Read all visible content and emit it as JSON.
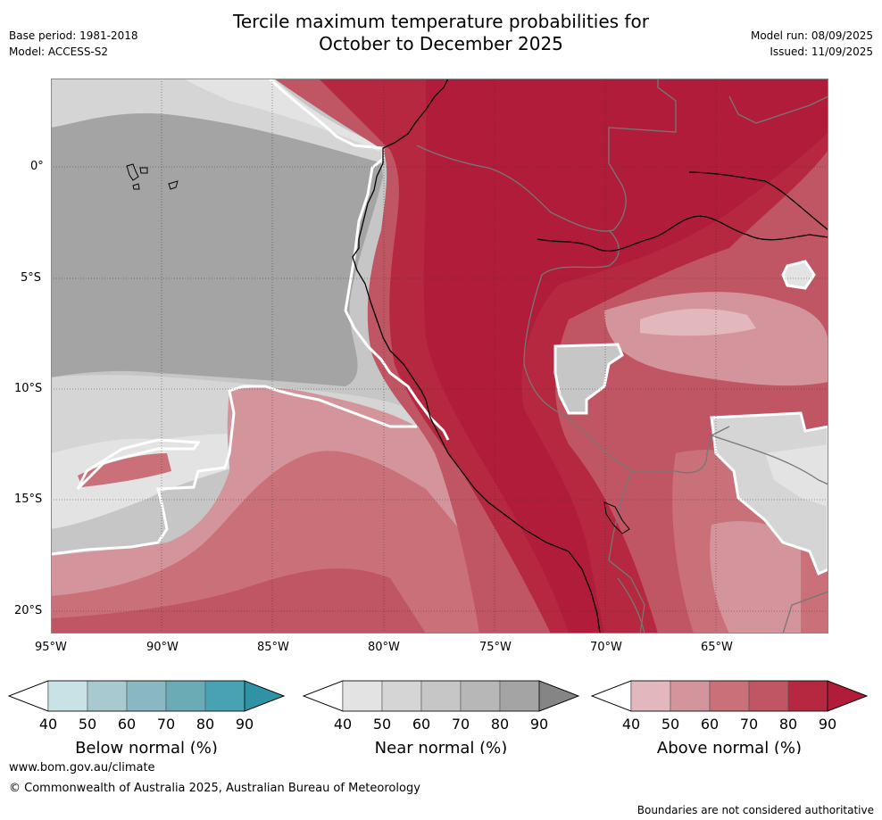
{
  "header": {
    "title_line1": "Tercile maximum temperature probabilities for",
    "title_line2": "October to December 2025",
    "base_period": "Base period: 1981-2018",
    "model": "Model: ACCESS-S2",
    "model_run": "Model run: 08/09/2025",
    "issued": "Issued: 11/09/2025"
  },
  "map": {
    "lat_labels": [
      "0°",
      "5°S",
      "10°S",
      "15°S",
      "20°S"
    ],
    "lon_labels": [
      "95°W",
      "90°W",
      "85°W",
      "80°W",
      "75°W",
      "70°W",
      "65°W"
    ]
  },
  "colorbars": [
    {
      "name": "below",
      "label": "Below normal (%)",
      "ticks": [
        "40",
        "50",
        "60",
        "70",
        "80",
        "90"
      ],
      "colors": [
        "#ffffff",
        "#c9e2e6",
        "#a8c9cf",
        "#8ab8c2",
        "#6aabb6",
        "#48a2b1",
        "#2f93a5"
      ]
    },
    {
      "name": "near",
      "label": "Near normal (%)",
      "ticks": [
        "40",
        "50",
        "60",
        "70",
        "80",
        "90"
      ],
      "colors": [
        "#ffffff",
        "#e3e3e3",
        "#d5d5d5",
        "#c6c6c6",
        "#b7b7b7",
        "#a4a4a4",
        "#858585"
      ]
    },
    {
      "name": "above",
      "label": "Above normal (%)",
      "ticks": [
        "40",
        "50",
        "60",
        "70",
        "80",
        "90"
      ],
      "colors": [
        "#ffffff",
        "#e2b7bd",
        "#d4949c",
        "#c97079",
        "#c05563",
        "#b5283f",
        "#b01c3a"
      ]
    }
  ],
  "footer": {
    "url": "www.bom.gov.au/climate",
    "copyright": "© Commonwealth of Australia 2025, Australian Bureau of Meteorology",
    "disclaimer": "Boundaries are not considered authoritative"
  }
}
